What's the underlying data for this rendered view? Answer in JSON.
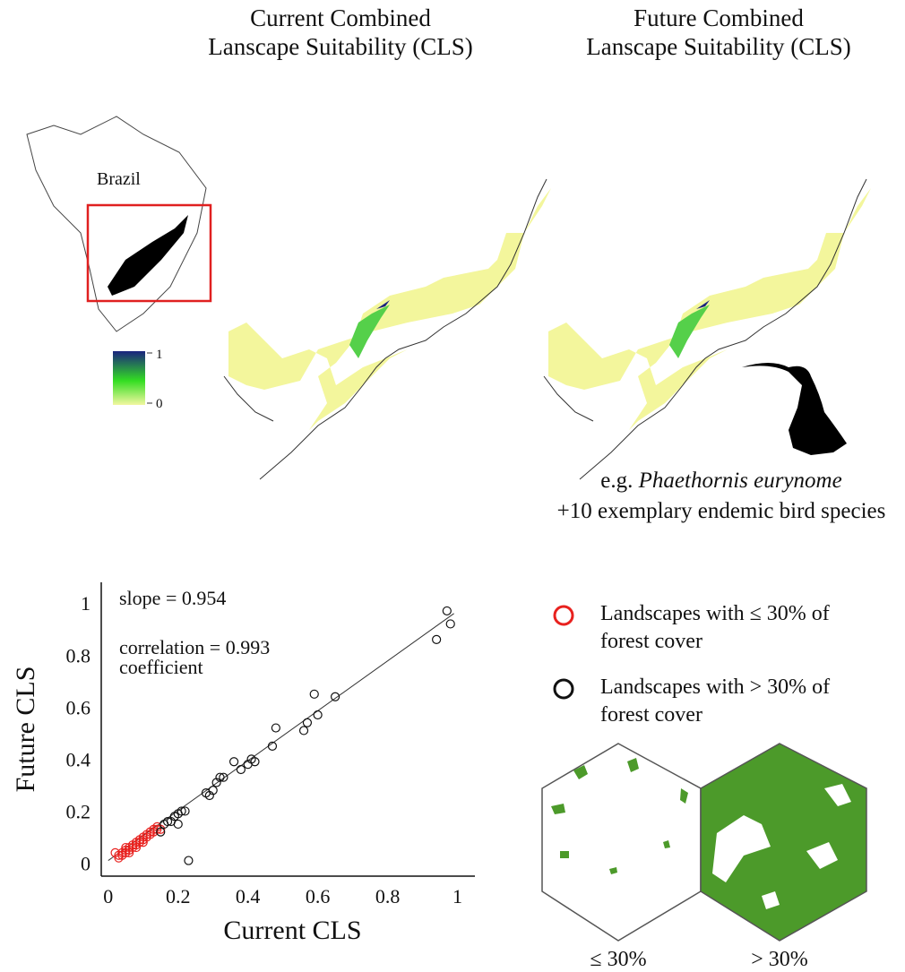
{
  "current_map": {
    "title_lines": [
      "Current Combined",
      "Lanscape Suitability (CLS)"
    ]
  },
  "future_map": {
    "title_lines": [
      "Future Combined",
      "Lanscape Suitability (CLS)"
    ]
  },
  "inset": {
    "label": "Brazil",
    "colorbar_ticks": [
      1,
      0
    ]
  },
  "species": {
    "prefix": "e.g.",
    "name": "Phaethornis eurynome",
    "note": "+10 exemplary endemic bird species"
  },
  "hexagon_labels": [
    "≤ 30%",
    "> 30%"
  ],
  "chart_data": {
    "type": "scatter",
    "xlabel": "Current CLS",
    "ylabel": "Future CLS",
    "annotations": [
      "slope = 0.954",
      "correlation = 0.993",
      "coefficient"
    ],
    "xlim": [
      -0.02,
      1.05
    ],
    "ylim": [
      -0.05,
      1.08
    ],
    "xticks": [
      0,
      0.2,
      0.4,
      0.6,
      0.8,
      1
    ],
    "yticks": [
      0,
      0.2,
      0.4,
      0.6,
      0.8,
      1
    ],
    "grid": false,
    "fit_line": {
      "x": [
        0,
        0.99
      ],
      "y": [
        0.01,
        0.96
      ]
    },
    "series": [
      {
        "name": "Landscapes with ≤ 30% of forest cover",
        "color": "#e8211e",
        "x": [
          0.02,
          0.03,
          0.03,
          0.04,
          0.04,
          0.05,
          0.05,
          0.06,
          0.06,
          0.07,
          0.07,
          0.08,
          0.08,
          0.09,
          0.09,
          0.1,
          0.1,
          0.11,
          0.11,
          0.12,
          0.12,
          0.13,
          0.13,
          0.14,
          0.14,
          0.15,
          0.05,
          0.06,
          0.08,
          0.1
        ],
        "y": [
          0.04,
          0.02,
          0.03,
          0.03,
          0.04,
          0.04,
          0.05,
          0.05,
          0.06,
          0.06,
          0.07,
          0.07,
          0.08,
          0.08,
          0.09,
          0.09,
          0.1,
          0.1,
          0.11,
          0.11,
          0.12,
          0.12,
          0.13,
          0.13,
          0.14,
          0.13,
          0.06,
          0.04,
          0.06,
          0.08
        ]
      },
      {
        "name": "Landscapes with > 30% of forest cover",
        "color": "#111111",
        "x": [
          0.15,
          0.16,
          0.17,
          0.18,
          0.19,
          0.2,
          0.21,
          0.22,
          0.2,
          0.23,
          0.28,
          0.29,
          0.3,
          0.31,
          0.32,
          0.33,
          0.36,
          0.38,
          0.4,
          0.41,
          0.42,
          0.47,
          0.48,
          0.56,
          0.57,
          0.59,
          0.6,
          0.65,
          0.94,
          0.97,
          0.98
        ],
        "y": [
          0.12,
          0.15,
          0.16,
          0.16,
          0.18,
          0.19,
          0.2,
          0.2,
          0.15,
          0.01,
          0.27,
          0.26,
          0.28,
          0.31,
          0.33,
          0.33,
          0.39,
          0.36,
          0.38,
          0.4,
          0.39,
          0.45,
          0.52,
          0.51,
          0.54,
          0.65,
          0.57,
          0.64,
          0.86,
          0.97,
          0.92
        ]
      }
    ]
  }
}
